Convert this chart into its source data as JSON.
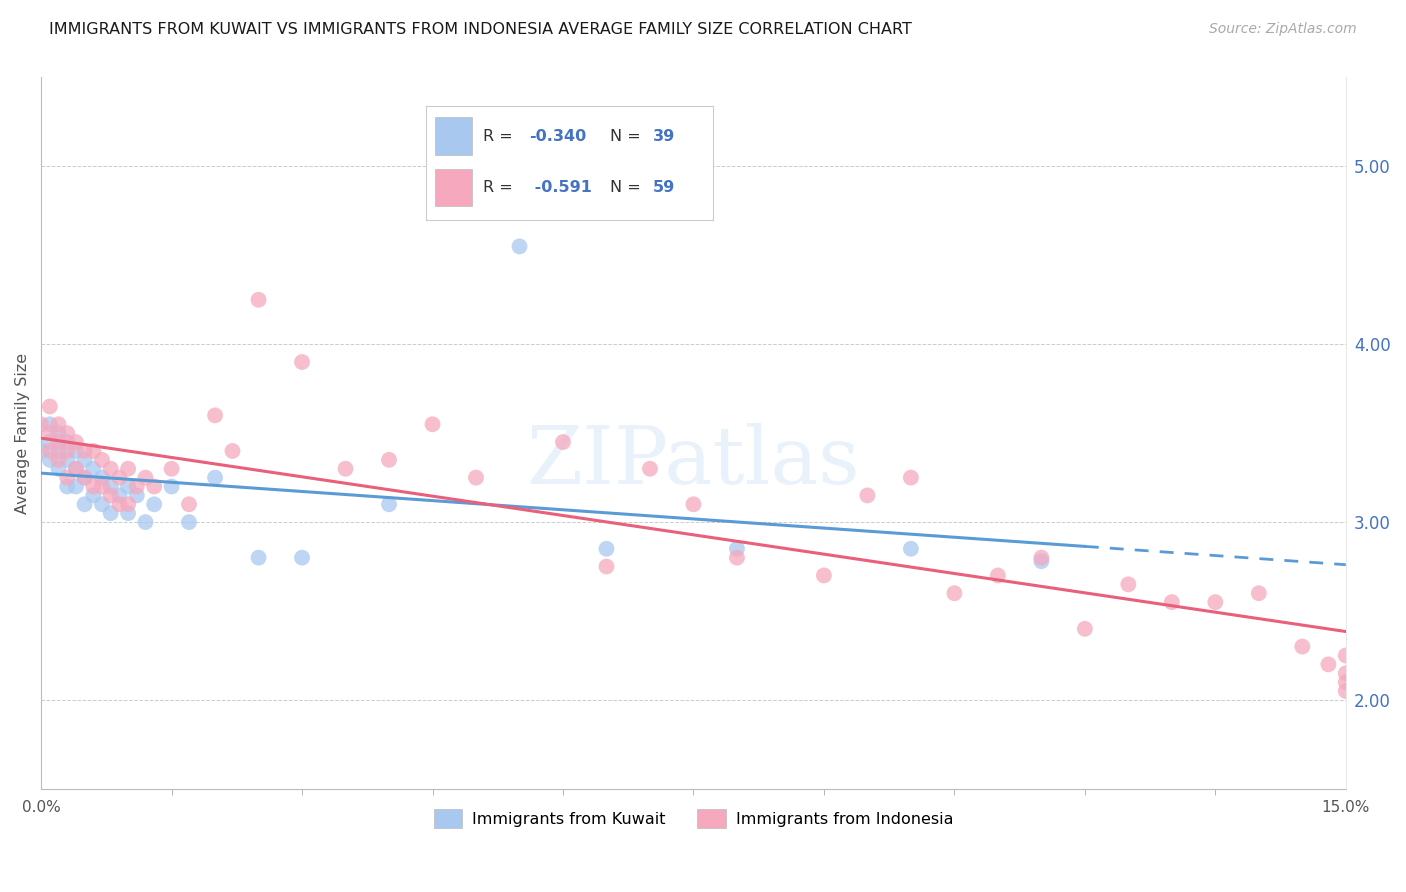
{
  "title": "IMMIGRANTS FROM KUWAIT VS IMMIGRANTS FROM INDONESIA AVERAGE FAMILY SIZE CORRELATION CHART",
  "source": "Source: ZipAtlas.com",
  "ylabel": "Average Family Size",
  "kuwait_color": "#A8C8F0",
  "indonesia_color": "#F5A8BE",
  "kuwait_line_color": "#5B9BD5",
  "indonesia_line_color": "#E8607A",
  "kuwait_label": "Immigrants from Kuwait",
  "indonesia_label": "Immigrants from Indonesia",
  "xlim": [
    0.0,
    0.15
  ],
  "ylim": [
    1.5,
    5.5
  ],
  "right_yticks": [
    2.0,
    3.0,
    4.0,
    5.0
  ],
  "right_ylabels": [
    "2.00",
    "3.00",
    "4.00",
    "5.00"
  ],
  "legend_text_color": "#4472C4",
  "kuwait_x": [
    0.0,
    0.001,
    0.001,
    0.001,
    0.002,
    0.002,
    0.002,
    0.003,
    0.003,
    0.003,
    0.004,
    0.004,
    0.004,
    0.005,
    0.005,
    0.005,
    0.006,
    0.006,
    0.007,
    0.007,
    0.008,
    0.008,
    0.009,
    0.01,
    0.01,
    0.011,
    0.012,
    0.013,
    0.015,
    0.017,
    0.02,
    0.025,
    0.03,
    0.04,
    0.055,
    0.065,
    0.08,
    0.1,
    0.115
  ],
  "kuwait_y": [
    3.4,
    3.55,
    3.45,
    3.35,
    3.5,
    3.4,
    3.3,
    3.45,
    3.35,
    3.2,
    3.4,
    3.3,
    3.2,
    3.35,
    3.25,
    3.1,
    3.3,
    3.15,
    3.25,
    3.1,
    3.2,
    3.05,
    3.15,
    3.2,
    3.05,
    3.15,
    3.0,
    3.1,
    3.2,
    3.0,
    3.25,
    2.8,
    2.8,
    3.1,
    4.55,
    2.85,
    2.85,
    2.85,
    2.78
  ],
  "indonesia_x": [
    0.0,
    0.001,
    0.001,
    0.001,
    0.002,
    0.002,
    0.002,
    0.003,
    0.003,
    0.003,
    0.004,
    0.004,
    0.005,
    0.005,
    0.006,
    0.006,
    0.007,
    0.007,
    0.008,
    0.008,
    0.009,
    0.009,
    0.01,
    0.01,
    0.011,
    0.012,
    0.013,
    0.015,
    0.017,
    0.02,
    0.022,
    0.025,
    0.03,
    0.035,
    0.04,
    0.045,
    0.05,
    0.06,
    0.065,
    0.07,
    0.075,
    0.08,
    0.09,
    0.095,
    0.1,
    0.105,
    0.11,
    0.115,
    0.12,
    0.125,
    0.13,
    0.135,
    0.14,
    0.145,
    0.148,
    0.15,
    0.15,
    0.15,
    0.15
  ],
  "indonesia_y": [
    3.55,
    3.65,
    3.5,
    3.4,
    3.55,
    3.45,
    3.35,
    3.5,
    3.4,
    3.25,
    3.45,
    3.3,
    3.4,
    3.25,
    3.4,
    3.2,
    3.35,
    3.2,
    3.3,
    3.15,
    3.25,
    3.1,
    3.3,
    3.1,
    3.2,
    3.25,
    3.2,
    3.3,
    3.1,
    3.6,
    3.4,
    4.25,
    3.9,
    3.3,
    3.35,
    3.55,
    3.25,
    3.45,
    2.75,
    3.3,
    3.1,
    2.8,
    2.7,
    3.15,
    3.25,
    2.6,
    2.7,
    2.8,
    2.4,
    2.65,
    2.55,
    2.55,
    2.6,
    2.3,
    2.2,
    2.1,
    2.05,
    2.25,
    2.15
  ]
}
